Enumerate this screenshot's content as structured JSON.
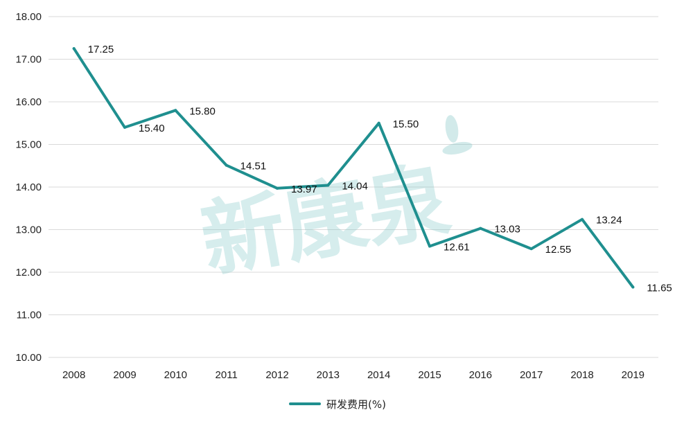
{
  "chart_data": {
    "type": "line",
    "title": "",
    "xlabel": "",
    "ylabel": "",
    "categories": [
      "2008",
      "2009",
      "2010",
      "2011",
      "2012",
      "2013",
      "2014",
      "2015",
      "2016",
      "2017",
      "2018",
      "2019"
    ],
    "series": [
      {
        "name": "研发费用(%)",
        "color": "#1f8f8f",
        "values": [
          17.25,
          15.4,
          15.8,
          14.51,
          13.97,
          14.04,
          15.5,
          12.61,
          13.03,
          12.55,
          13.24,
          11.65
        ],
        "labels": [
          "17.25",
          "15.40",
          "15.80",
          "14.51",
          "13.97",
          "14.04",
          "15.50",
          "12.61",
          "13.03",
          "12.55",
          "13.24",
          "11.65"
        ]
      }
    ],
    "ylim": [
      10,
      18
    ],
    "yticks": [
      "10.00",
      "11.00",
      "12.00",
      "13.00",
      "14.00",
      "15.00",
      "16.00",
      "17.00",
      "18.00"
    ],
    "grid": true,
    "legend_position": "bottom-center",
    "watermark_text": "新康泉"
  }
}
